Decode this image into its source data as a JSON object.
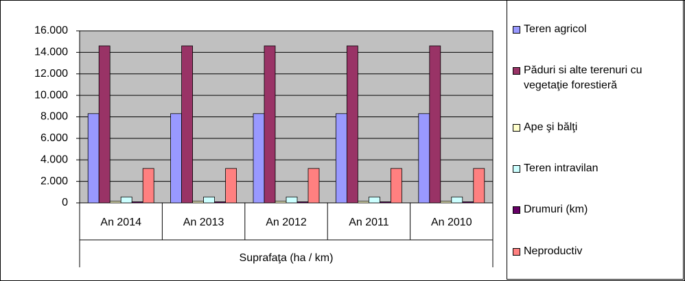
{
  "chart_data": {
    "type": "bar",
    "categories": [
      "An 2014",
      "An 2013",
      "An 2012",
      "An 2011",
      "An 2010"
    ],
    "xlabel": "Suprafaţa (ha / km)",
    "series": [
      {
        "name": "Teren agricol",
        "color": "#9999ff",
        "values": [
          8300,
          8300,
          8300,
          8300,
          8300
        ]
      },
      {
        "name": "Păduri si alte terenuri cu vegetaţie forestieră",
        "color": "#993366",
        "values": [
          14600,
          14600,
          14600,
          14600,
          14600
        ]
      },
      {
        "name": "Ape şi bălţi",
        "color": "#ffffcc",
        "values": [
          150,
          150,
          150,
          150,
          150
        ]
      },
      {
        "name": "Teren intravilan",
        "color": "#ccffff",
        "values": [
          550,
          550,
          550,
          550,
          550
        ]
      },
      {
        "name": "Drumuri (km)",
        "color": "#660066",
        "values": [
          100,
          100,
          100,
          100,
          100
        ]
      },
      {
        "name": "Neproductiv",
        "color": "#ff8080",
        "values": [
          3200,
          3200,
          3200,
          3200,
          3200
        ]
      }
    ],
    "ylim": [
      0,
      16000
    ],
    "yticks": [
      0,
      {
        "value": 2000,
        "label": "2.000"
      },
      {
        "value": 4000,
        "label": "4.000"
      },
      {
        "value": 6000,
        "label": "6.000"
      },
      {
        "value": 8000,
        "label": "8.000"
      },
      {
        "value": 10000,
        "label": "10.000"
      },
      {
        "value": 12000,
        "label": "12.000"
      },
      {
        "value": 14000,
        "label": "14.000"
      },
      {
        "value": 16000,
        "label": "16.000"
      }
    ],
    "grid": true,
    "legend": "right",
    "plot_background": "#c0c0c0"
  }
}
